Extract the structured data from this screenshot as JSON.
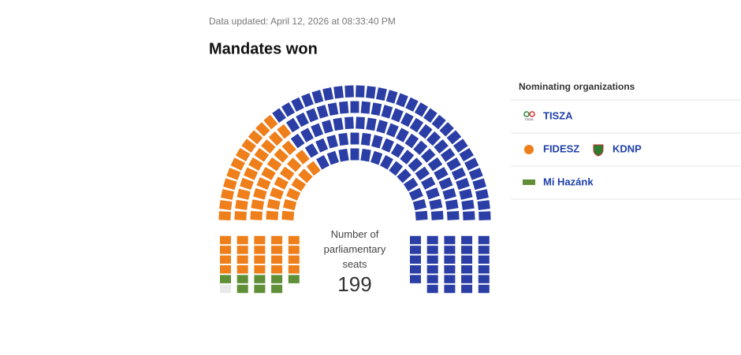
{
  "updated": "Data updated: April 12, 2026 at 08:33:40 PM",
  "chart_data": {
    "type": "parliament",
    "title": "Mandates won",
    "center_label": "Number of parliamentary seats",
    "total_seats": 199,
    "legend_title": "Nominating organizations",
    "unassigned_seats": 1,
    "unassigned_color": "#e9e9e9",
    "series": [
      {
        "name": "TISZA",
        "color": "#2a3ea6",
        "values": 128
      },
      {
        "names": [
          "FIDESZ",
          "KDNP"
        ],
        "color": "#ee7f1a",
        "values": 62
      },
      {
        "name": "Mi Hazánk",
        "color": "#5f8f37",
        "values": 8
      }
    ]
  }
}
